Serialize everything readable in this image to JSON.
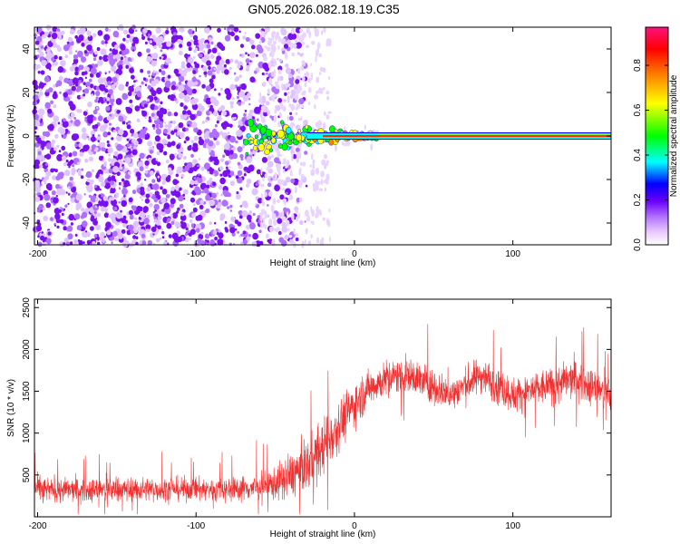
{
  "title": "GN05.2026.082.18.19.C35",
  "chart_data": [
    {
      "type": "heatmap",
      "xlabel": "Height of straight line (km)",
      "ylabel": "Frequency (Hz)",
      "xlim": [
        -202,
        162
      ],
      "ylim": [
        -50,
        50
      ],
      "x_ticks": [
        -200,
        -100,
        0,
        100
      ],
      "y_ticks": [
        -40,
        -20,
        0,
        20,
        40
      ],
      "colorbar": {
        "label": "Normalized spectral amplitude",
        "range": [
          0,
          0.97
        ],
        "ticks": [
          0.0,
          0.2,
          0.4,
          0.6,
          0.8
        ],
        "colors": [
          "#ffffff",
          "#e8c8ff",
          "#b070ff",
          "#6a00ff",
          "#0000ff",
          "#00ffff",
          "#00ff00",
          "#ffff00",
          "#ff8000",
          "#ff0000",
          "#ff1080"
        ]
      },
      "features": {
        "noise_region_x": [
          -202,
          -30
        ],
        "faint_noise_region_x": [
          -60,
          15
        ],
        "coherent_tone_frequency": 0,
        "coherent_tone_x": [
          -70,
          162
        ]
      }
    },
    {
      "type": "line",
      "xlabel": "Height of straight line (km)",
      "ylabel": "SNR (10 * v/v)",
      "xlim": [
        -202,
        162
      ],
      "ylim": [
        0,
        2600
      ],
      "x_ticks": [
        -200,
        -100,
        0,
        100
      ],
      "y_ticks": [
        500,
        1000,
        1500,
        2000,
        2500
      ],
      "color": "#f03030",
      "envelope": {
        "x": [
          -202,
          -180,
          -150,
          -120,
          -100,
          -80,
          -60,
          -50,
          -40,
          -30,
          -20,
          -10,
          0,
          10,
          20,
          30,
          40,
          60,
          80,
          100,
          120,
          140,
          162
        ],
        "mean": [
          330,
          320,
          330,
          330,
          330,
          330,
          350,
          400,
          500,
          620,
          820,
          1100,
          1350,
          1550,
          1650,
          1700,
          1650,
          1450,
          1700,
          1450,
          1550,
          1650,
          1450
        ],
        "amp": [
          200,
          200,
          200,
          200,
          200,
          200,
          220,
          280,
          380,
          420,
          480,
          420,
          380,
          300,
          300,
          300,
          300,
          280,
          300,
          300,
          300,
          330,
          300
        ]
      }
    }
  ]
}
